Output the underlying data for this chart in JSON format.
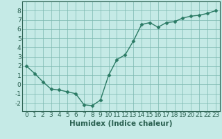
{
  "x": [
    0,
    1,
    2,
    3,
    4,
    5,
    6,
    7,
    8,
    9,
    10,
    11,
    12,
    13,
    14,
    15,
    16,
    17,
    18,
    19,
    20,
    21,
    22,
    23
  ],
  "y": [
    2.0,
    1.2,
    0.3,
    -0.5,
    -0.6,
    -0.8,
    -1.0,
    -2.2,
    -2.3,
    -1.7,
    1.0,
    2.7,
    3.2,
    4.7,
    6.5,
    6.7,
    6.2,
    6.7,
    6.8,
    7.2,
    7.4,
    7.5,
    7.7,
    8.0
  ],
  "xlim": [
    -0.5,
    23.5
  ],
  "ylim": [
    -2.9,
    9.0
  ],
  "yticks": [
    -2,
    -1,
    0,
    1,
    2,
    3,
    4,
    5,
    6,
    7,
    8
  ],
  "xticks": [
    0,
    1,
    2,
    3,
    4,
    5,
    6,
    7,
    8,
    9,
    10,
    11,
    12,
    13,
    14,
    15,
    16,
    17,
    18,
    19,
    20,
    21,
    22,
    23
  ],
  "xlabel": "Humidex (Indice chaleur)",
  "line_color": "#2a7a64",
  "marker": "D",
  "marker_size": 2.5,
  "bg_color": "#c5eae6",
  "grid_color": "#7db8b0",
  "axis_color": "#2a6050",
  "tick_label_fontsize": 6.5,
  "xlabel_fontsize": 7.5,
  "line_width": 1.0
}
